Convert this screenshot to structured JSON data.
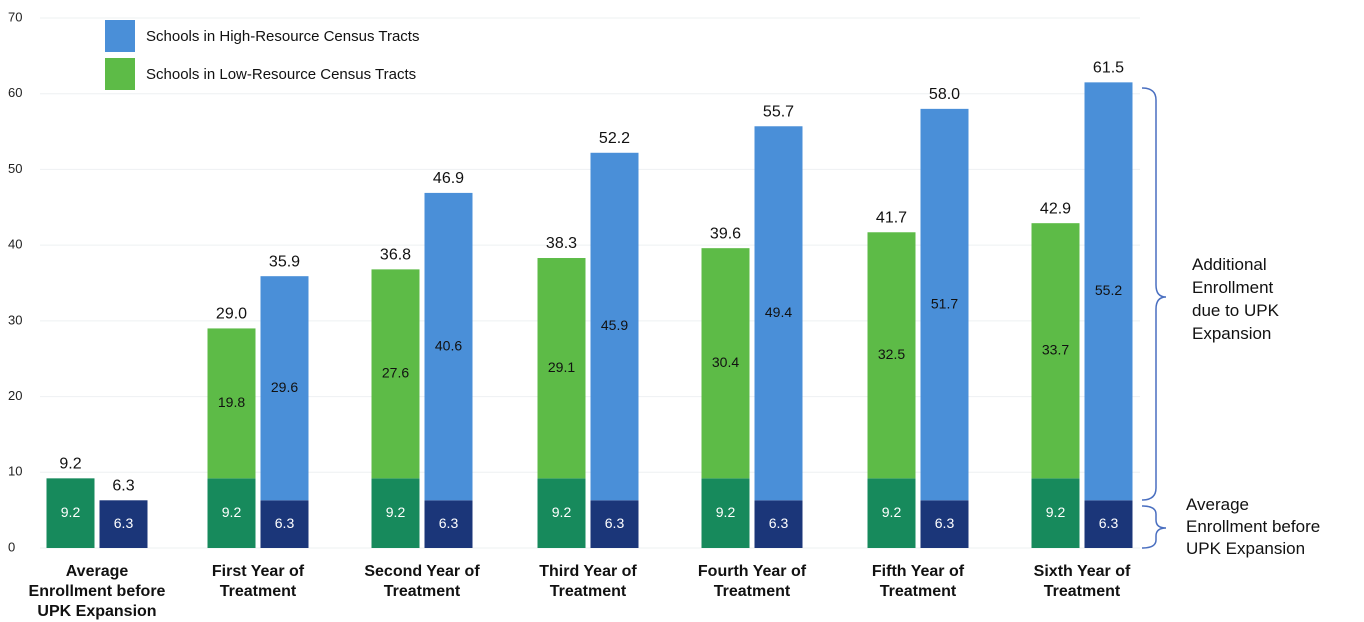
{
  "chart_data": {
    "type": "stacked_bar",
    "categories": [
      "Average\nEnrollment before\nUPK Expansion",
      "First Year of\nTreatment",
      "Second Year of\nTreatment",
      "Third Year of\nTreatment",
      "Fourth Year of\nTreatment",
      "Fifth Year of\nTreatment",
      "Sixth Year of\nTreatment"
    ],
    "series": [
      {
        "name": "Schools in Low-Resource Census Tracts",
        "color": "#5dbb47",
        "base_color": "#178a5c",
        "base": [
          9.2,
          9.2,
          9.2,
          9.2,
          9.2,
          9.2,
          9.2
        ],
        "additional": [
          null,
          19.8,
          27.6,
          29.1,
          30.4,
          32.5,
          33.7
        ],
        "total_labels": [
          "9.2",
          "29.0",
          "36.8",
          "38.3",
          "39.6",
          "41.7",
          "42.9"
        ]
      },
      {
        "name": "Schools in High-Resource Census Tracts",
        "color": "#4a8fd8",
        "base_color": "#1b3679",
        "base": [
          6.3,
          6.3,
          6.3,
          6.3,
          6.3,
          6.3,
          6.3
        ],
        "additional": [
          null,
          29.6,
          40.6,
          45.9,
          49.4,
          51.7,
          55.2
        ],
        "total_labels": [
          "6.3",
          "35.9",
          "46.9",
          "52.2",
          "55.7",
          "58.0",
          "61.5"
        ]
      }
    ],
    "ylim": [
      0,
      70
    ],
    "yticks": [
      0,
      10,
      20,
      30,
      40,
      50,
      60,
      70
    ],
    "grid": true,
    "annotations": [
      "Additional\nEnrollment\ndue to UPK\nExpansion",
      "Average\nEnrollment before\nUPK Expansion"
    ]
  }
}
